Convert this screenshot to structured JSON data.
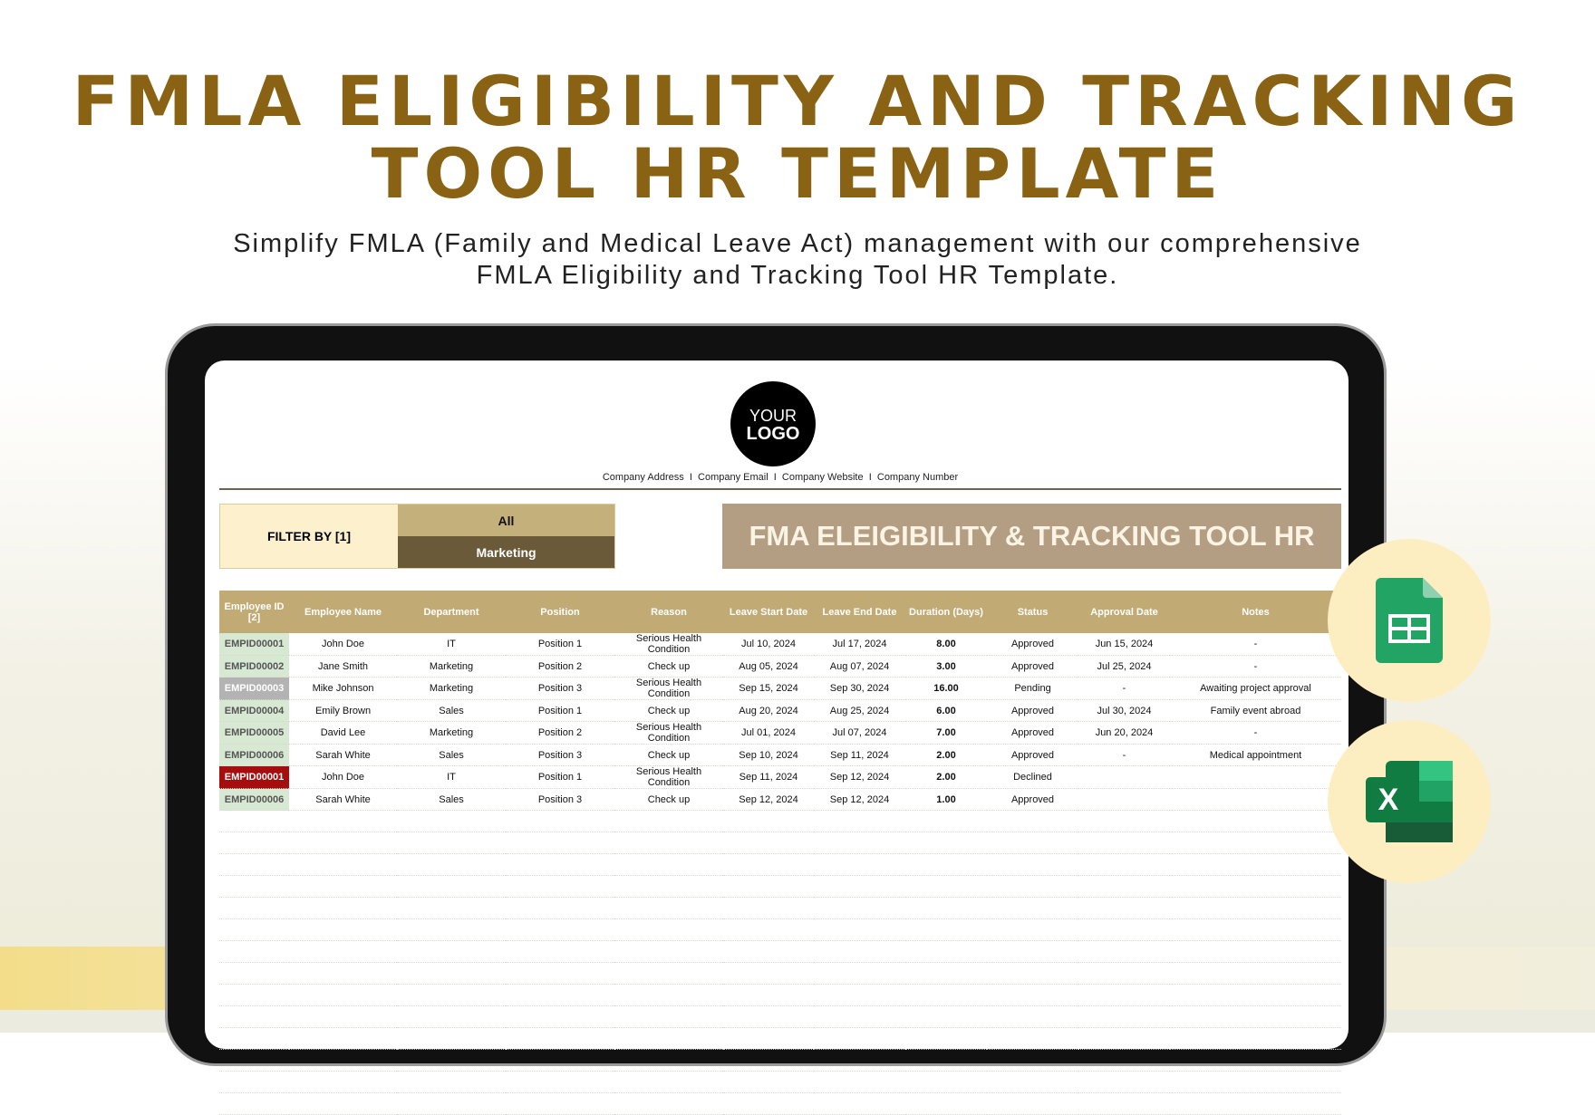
{
  "hero": {
    "title_line1": "FMLA ELIGIBILITY AND TRACKING",
    "title_line2": "TOOL HR TEMPLATE",
    "subtitle_line1": "Simplify FMLA (Family and Medical Leave Act) management with our comprehensive",
    "subtitle_line2": "FMLA Eligibility and Tracking Tool HR Template."
  },
  "sheet": {
    "logo_line1": "YOUR",
    "logo_line2": "LOGO",
    "company_info": "Company Address  I  Company Email  I  Company Website  I  Company Number",
    "filter": {
      "label": "FILTER BY [1]",
      "options": [
        "All",
        "Marketing"
      ]
    },
    "banner": "FMA ELEIGIBILITY & TRACKING TOOL HR",
    "columns": [
      "Employee ID [2]",
      "Employee Name",
      "Department",
      "Position",
      "Reason",
      "Leave Start Date",
      "Leave End Date",
      "Duration (Days)",
      "Status",
      "Approval Date",
      "Notes"
    ],
    "rows": [
      [
        "EMPID00001",
        "John Doe",
        "IT",
        "Position 1",
        "Serious Health Condition",
        "Jul 10, 2024",
        "Jul 17, 2024",
        "8.00",
        "Approved",
        "Jun 15, 2024",
        "-"
      ],
      [
        "EMPID00002",
        "Jane Smith",
        "Marketing",
        "Position 2",
        "Check up",
        "Aug 05, 2024",
        "Aug 07, 2024",
        "3.00",
        "Approved",
        "Jul 25, 2024",
        "-"
      ],
      [
        "EMPID00003",
        "Mike Johnson",
        "Marketing",
        "Position 3",
        "Serious Health Condition",
        "Sep 15, 2024",
        "Sep 30, 2024",
        "16.00",
        "Pending",
        "-",
        "Awaiting project approval"
      ],
      [
        "EMPID00004",
        "Emily Brown",
        "Sales",
        "Position 1",
        "Check up",
        "Aug 20, 2024",
        "Aug 25, 2024",
        "6.00",
        "Approved",
        "Jul 30, 2024",
        "Family event abroad"
      ],
      [
        "EMPID00005",
        "David Lee",
        "Marketing",
        "Position 2",
        "Serious Health Condition",
        "Jul 01, 2024",
        "Jul 07, 2024",
        "7.00",
        "Approved",
        "Jun 20, 2024",
        "-"
      ],
      [
        "EMPID00006",
        "Sarah White",
        "Sales",
        "Position 3",
        "Check up",
        "Sep 10, 2024",
        "Sep 11, 2024",
        "2.00",
        "Approved",
        "-",
        "Medical appointment"
      ],
      [
        "EMPID00001",
        "John Doe",
        "IT",
        "Position 1",
        "Serious Health Condition",
        "Sep 11, 2024",
        "Sep 12, 2024",
        "2.00",
        "Declined",
        "",
        ""
      ],
      [
        "EMPID00006",
        "Sarah White",
        "Sales",
        "Position 3",
        "Check up",
        "Sep 12, 2024",
        "Sep 12, 2024",
        "1.00",
        "Approved",
        "",
        ""
      ]
    ]
  },
  "colors": {
    "title": "#8a6213",
    "header": "#c2aa74",
    "id_approved": "#d7e8d3",
    "id_pending": "#b3b3b3",
    "id_declined": "#a60d0d",
    "filter_all": "#c4b07a",
    "filter_selected": "#6b5a3a"
  },
  "icons": [
    "google-sheets-icon",
    "excel-icon"
  ]
}
